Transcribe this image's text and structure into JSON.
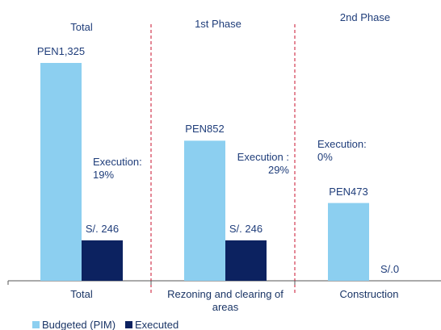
{
  "chart_data": {
    "type": "bar",
    "categories": [
      "Total",
      "Rezoning and clearing of areas",
      "Construction"
    ],
    "series": [
      {
        "name": "Budgeted (PIM)",
        "color": "#8ccff0",
        "values": [
          1325,
          852,
          473
        ],
        "value_labels": [
          "PEN1,325",
          "PEN852",
          "PEN473"
        ]
      },
      {
        "name": "Executed",
        "color": "#0c2260",
        "values": [
          246,
          246,
          0
        ],
        "value_labels": [
          "S/. 246",
          "S/. 246",
          "S/.0"
        ]
      }
    ],
    "annotations": [
      "Total",
      "1st Phase",
      "2nd Phase",
      "Execution: 19%",
      "Execution : 29%",
      "Execution: 0%"
    ],
    "divider_color": "#c8102e",
    "legend": "bottom-left"
  }
}
